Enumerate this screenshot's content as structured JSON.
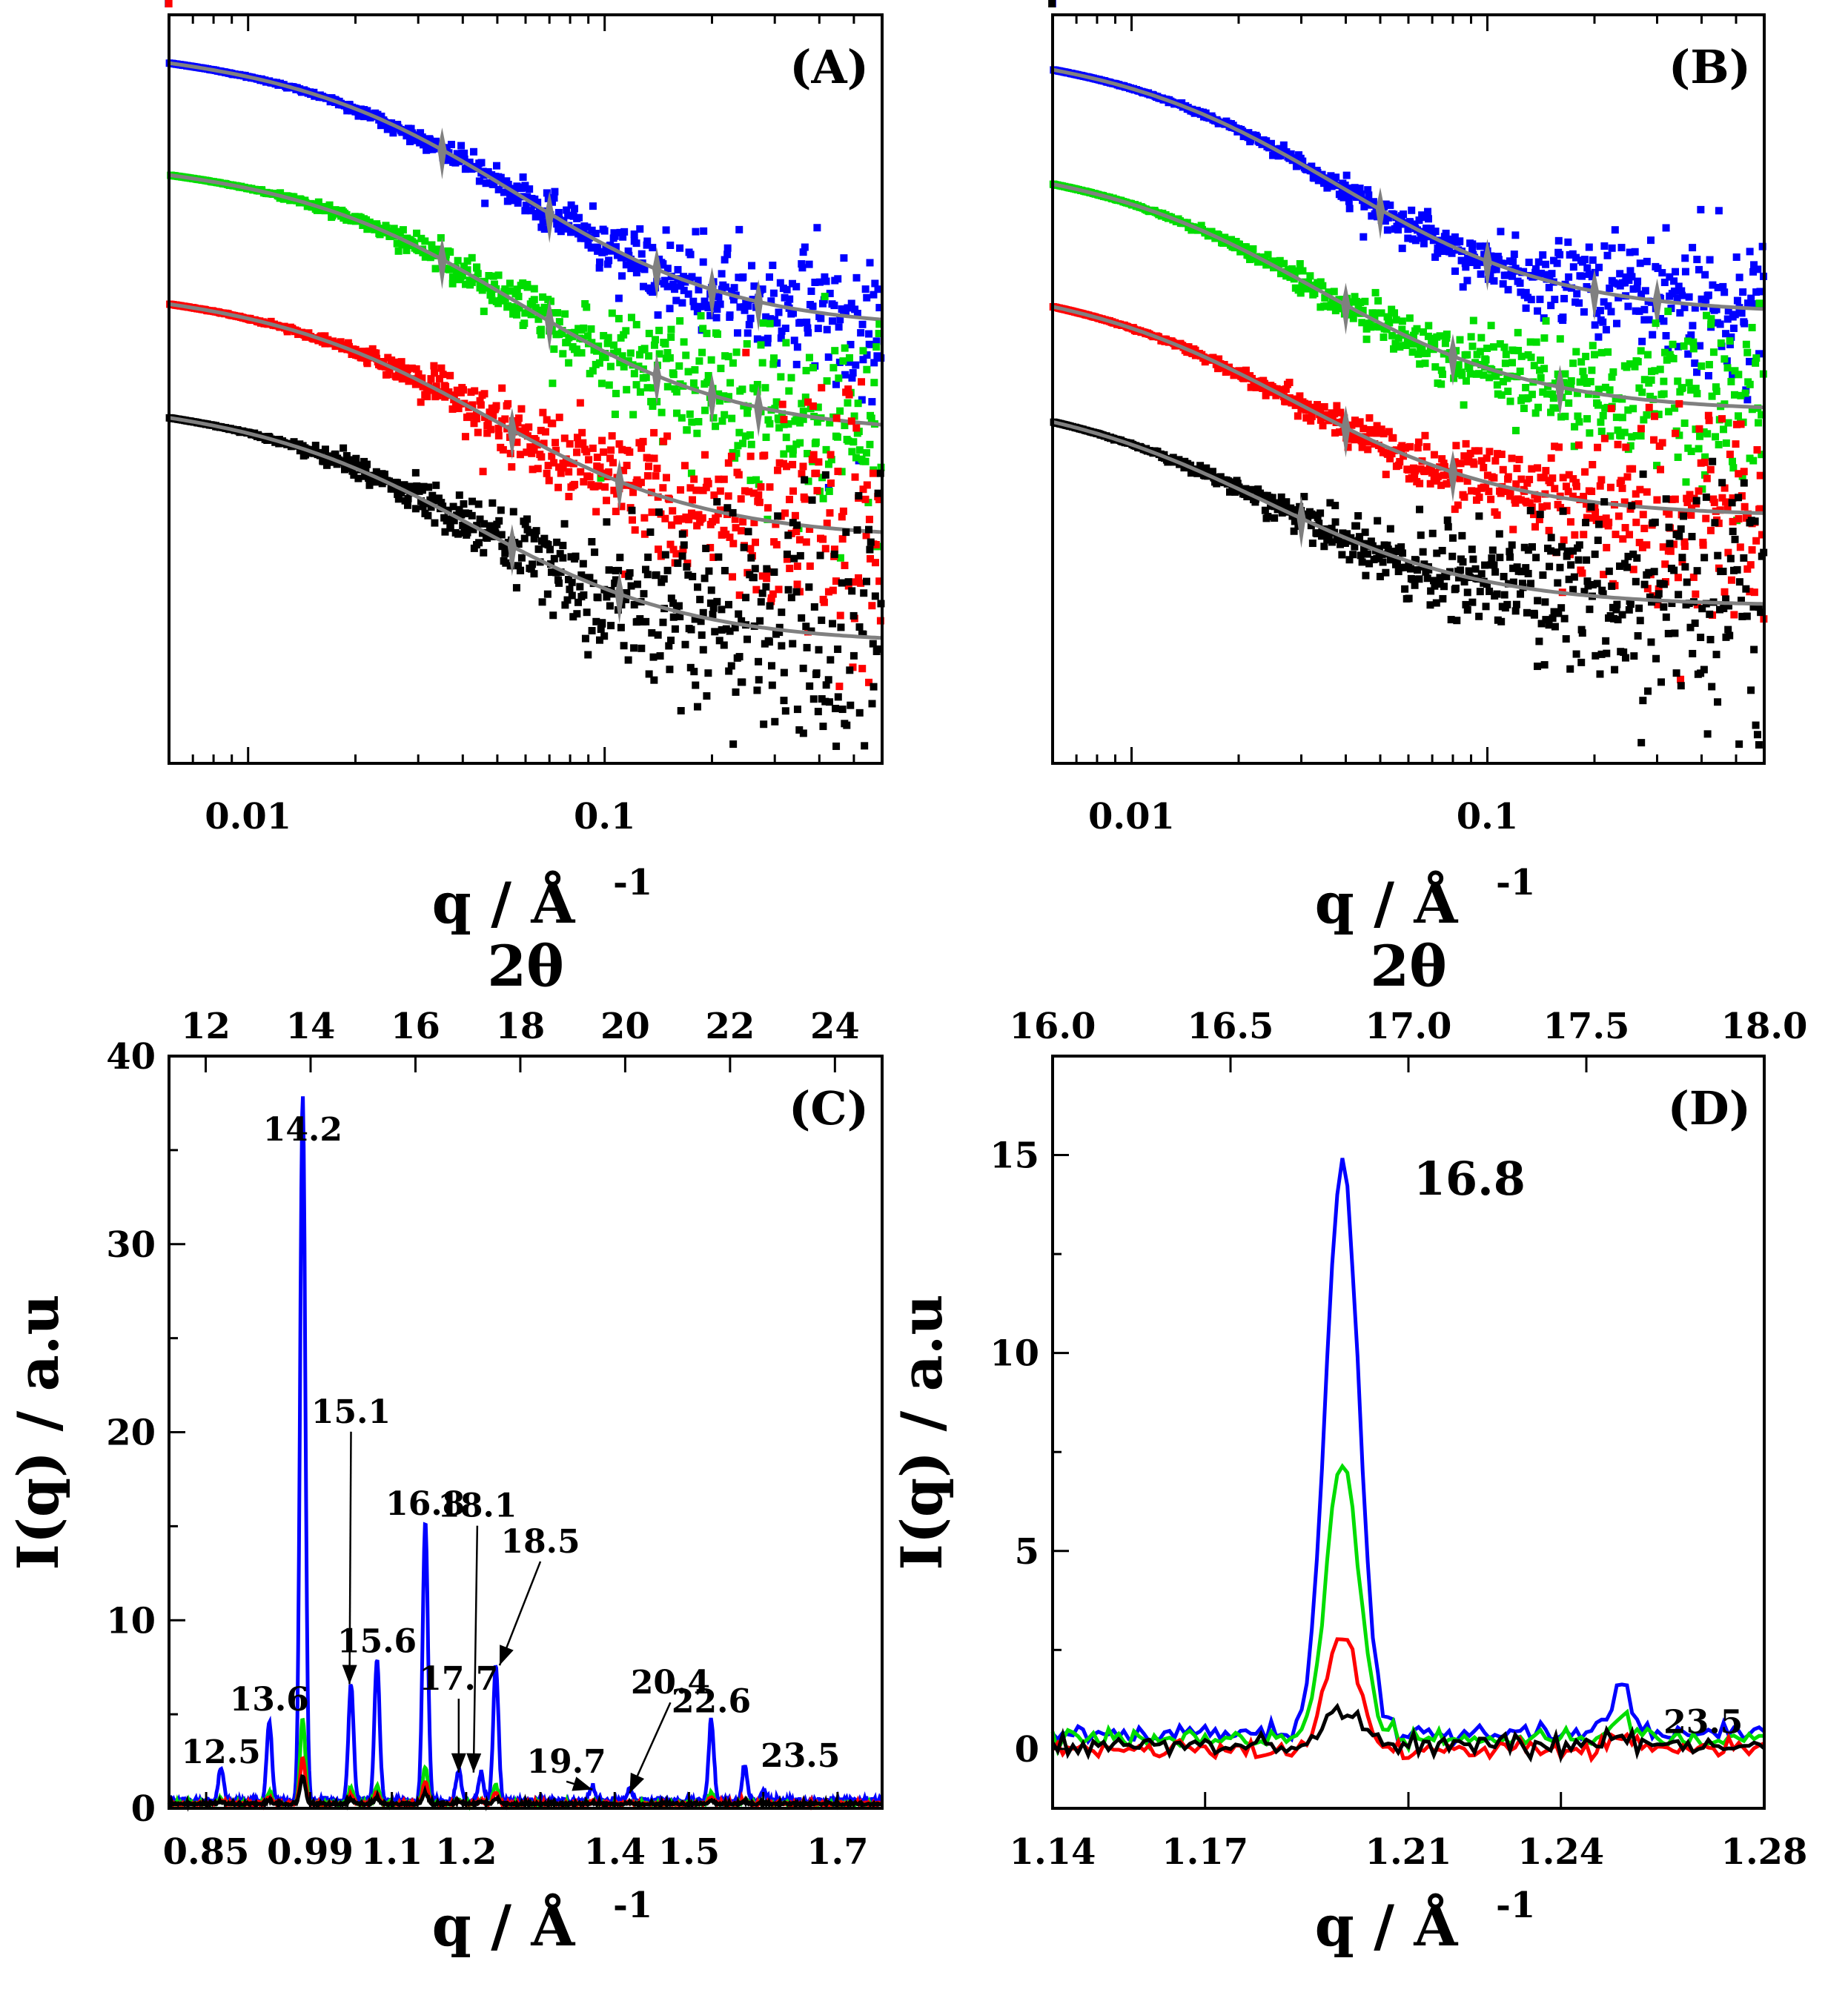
{
  "colors": {
    "blue": "#0000ff",
    "green": "#00dd00",
    "red": "#ff0000",
    "black": "#000000",
    "fit": "#808080"
  },
  "chart_data": [
    {
      "id": "A",
      "type": "scatter",
      "panel_label": "(A)",
      "xlabel": "q / Å",
      "xlabel_sup": "-1",
      "xscale": "log",
      "xlim": [
        0.006,
        0.6
      ],
      "xticks": [
        0.01,
        0.1
      ],
      "xtick_labels": [
        "0.01",
        "0.1"
      ],
      "ylabel": "",
      "yticks_shown": false,
      "series": [
        {
          "color": "blue",
          "start": 0.95,
          "plateau": 0.58,
          "knee": 0.06,
          "noise": 0.03,
          "fit_markers": [
            0.035,
            0.07,
            0.14,
            0.2,
            0.27
          ]
        },
        {
          "color": "green",
          "start": 0.8,
          "plateau": 0.44,
          "knee": 0.06,
          "noise": 0.045,
          "fit_markers": [
            0.035,
            0.07,
            0.14,
            0.2,
            0.27
          ]
        },
        {
          "color": "red",
          "start": 0.63,
          "plateau": 0.3,
          "knee": 0.05,
          "noise": 0.055,
          "fit_markers": [
            0.055,
            0.11
          ]
        },
        {
          "color": "black",
          "start": 0.48,
          "plateau": 0.16,
          "knee": 0.045,
          "noise": 0.07,
          "fit_markers": [
            0.055,
            0.11
          ]
        }
      ]
    },
    {
      "id": "B",
      "type": "scatter",
      "panel_label": "(B)",
      "xlabel": "q / Å",
      "xlabel_sup": "-1",
      "xscale": "log",
      "xlim": [
        0.006,
        0.6
      ],
      "xticks": [
        0.01,
        0.1
      ],
      "xtick_labels": [
        "0.01",
        "0.1"
      ],
      "ylabel": "",
      "yticks_shown": false,
      "series": [
        {
          "color": "blue",
          "start": 0.95,
          "plateau": 0.6,
          "knee": 0.04,
          "noise": 0.03,
          "fit_markers": [
            0.05,
            0.1,
            0.2,
            0.3
          ]
        },
        {
          "color": "green",
          "start": 0.8,
          "plateau": 0.47,
          "knee": 0.035,
          "noise": 0.04,
          "fit_markers": [
            0.04,
            0.08,
            0.16
          ]
        },
        {
          "color": "red",
          "start": 0.64,
          "plateau": 0.33,
          "knee": 0.03,
          "noise": 0.045,
          "fit_markers": [
            0.04,
            0.08
          ]
        },
        {
          "color": "black",
          "start": 0.49,
          "plateau": 0.21,
          "knee": 0.025,
          "noise": 0.06,
          "fit_markers": [
            0.03
          ]
        }
      ]
    },
    {
      "id": "C",
      "type": "line",
      "panel_label": "(C)",
      "xlabel": "q / Å",
      "xlabel_sup": "-1",
      "xlim": [
        0.8,
        1.76
      ],
      "xticks": [
        0.85,
        0.99,
        1.1,
        1.2,
        1.3,
        1.4,
        1.5,
        1.6,
        1.7
      ],
      "xtick_labels": [
        "0.85",
        "0.99",
        "1.1",
        "1.2",
        "",
        "1.4",
        "1.5",
        "",
        "1.7"
      ],
      "x2label": "2θ",
      "x2lim": [
        11.3,
        24.9
      ],
      "x2ticks": [
        12,
        14,
        16,
        18,
        20,
        22,
        24
      ],
      "x2tick_labels": [
        "12",
        "14",
        "16",
        "18",
        "20",
        "22",
        "24"
      ],
      "ylabel": "I(q) / a.u",
      "ylim": [
        0,
        40
      ],
      "yticks": [
        0,
        10,
        20,
        30,
        40
      ],
      "ytick_labels": [
        "0",
        "10",
        "20",
        "30",
        "40"
      ],
      "peaks_q": [
        0.87,
        0.935,
        0.98,
        1.045,
        1.08,
        1.145,
        1.19,
        1.22,
        1.24,
        1.37,
        1.42,
        1.53,
        1.575,
        1.6
      ],
      "series": [
        {
          "color": "blue",
          "heights": [
            1.8,
            4.2,
            37.5,
            6.2,
            7.5,
            14.8,
            1.6,
            1.5,
            7.2,
            0.8,
            0.6,
            4.2,
            1.8,
            0.6
          ]
        },
        {
          "color": "green",
          "heights": [
            0.4,
            1.0,
            7.5,
            1.4,
            1.6,
            3.2,
            0.4,
            0.4,
            1.6,
            0.2,
            0.2,
            1.0,
            0.4,
            0.2
          ]
        },
        {
          "color": "red",
          "heights": [
            0.3,
            0.6,
            4.0,
            0.8,
            1.0,
            2.0,
            0.3,
            0.3,
            1.0,
            0.2,
            0.1,
            0.6,
            0.3,
            0.1
          ]
        },
        {
          "color": "black",
          "heights": [
            0.2,
            0.3,
            2.5,
            0.4,
            0.5,
            1.0,
            0.2,
            0.2,
            0.5,
            0.1,
            0.1,
            0.3,
            0.2,
            0.1
          ]
        }
      ],
      "annotations": [
        {
          "text": "14.2",
          "x": 0.98,
          "y": 35.5
        },
        {
          "text": "12.5",
          "x": 0.87,
          "y": 2.4
        },
        {
          "text": "13.6",
          "x": 0.935,
          "y": 5.2
        },
        {
          "text": "15.1",
          "x": 1.045,
          "y": 20.5,
          "arrow_to": [
            1.043,
            6.6
          ]
        },
        {
          "text": "15.6",
          "x": 1.08,
          "y": 8.3
        },
        {
          "text": "16.8",
          "x": 1.145,
          "y": 15.6
        },
        {
          "text": "18.1",
          "x": 1.215,
          "y": 15.5,
          "arrow_to": [
            1.21,
            1.9
          ]
        },
        {
          "text": "17.7",
          "x": 1.19,
          "y": 6.3,
          "arrow_to": [
            1.19,
            1.9
          ]
        },
        {
          "text": "18.5",
          "x": 1.3,
          "y": 13.6,
          "arrow_to": [
            1.245,
            7.6
          ]
        },
        {
          "text": "19.7",
          "x": 1.335,
          "y": 1.9,
          "arrow_to": [
            1.37,
            1.0
          ]
        },
        {
          "text": "20.4",
          "x": 1.475,
          "y": 6.1,
          "arrow_to": [
            1.42,
            0.8
          ]
        },
        {
          "text": "22.6",
          "x": 1.53,
          "y": 5.1
        },
        {
          "text": "23.5",
          "x": 1.65,
          "y": 2.2
        }
      ]
    },
    {
      "id": "D",
      "type": "line",
      "panel_label": "(D)",
      "xlabel": "q / Å",
      "xlabel_sup": "-1",
      "xlim": [
        1.14,
        1.28
      ],
      "xticks": [
        1.14,
        1.17,
        1.21,
        1.24,
        1.28
      ],
      "xtick_labels": [
        "1.14",
        "1.17",
        "1.21",
        "1.24",
        "1.28"
      ],
      "x2label": "2θ",
      "x2lim": [
        16.0,
        18.0
      ],
      "x2ticks": [
        16.0,
        16.5,
        17.0,
        17.5,
        18.0
      ],
      "x2tick_labels": [
        "16.0",
        "16.5",
        "17.0",
        "17.5",
        "18.0"
      ],
      "ylabel": "I(q) / a.u",
      "ylim": [
        -1.5,
        17.5
      ],
      "yticks": [
        0,
        5,
        10,
        15
      ],
      "ytick_labels": [
        "0",
        "5",
        "10",
        "15"
      ],
      "series": [
        {
          "color": "blue",
          "baseline": 0.4,
          "peak": 14.9,
          "peak2": 1.7
        },
        {
          "color": "green",
          "baseline": 0.25,
          "peak": 7.2,
          "peak2": 0.9
        },
        {
          "color": "red",
          "baseline": 0.0,
          "peak": 2.9,
          "peak2": 0.3
        },
        {
          "color": "black",
          "baseline": 0.1,
          "peak": 0.95,
          "peak2": 0.3
        }
      ],
      "peak_q": 1.197,
      "peak2_q": 1.252,
      "annotations": [
        {
          "text": "16.8",
          "x": 1.211,
          "y": 14.0,
          "size": "big"
        },
        {
          "text": "23.5",
          "x": 1.268,
          "y": 0.4,
          "size": "small"
        }
      ]
    }
  ]
}
